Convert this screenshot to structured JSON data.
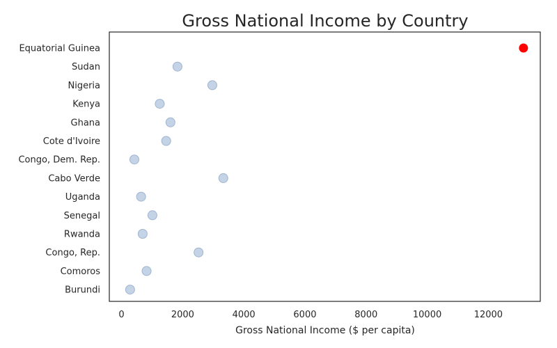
{
  "chart_data": {
    "type": "scatter",
    "title": "Gross National Income by Country",
    "xlabel": "Gross National Income ($ per capita)",
    "ylabel": "",
    "xlim": [
      -400,
      13700
    ],
    "x_ticks": [
      0,
      2000,
      4000,
      6000,
      8000,
      10000,
      12000
    ],
    "x_tick_labels": [
      "0",
      "2000",
      "4000",
      "6000",
      "8000",
      "10000",
      "12000"
    ],
    "grid": false,
    "colors": {
      "default_point": "#b0c4de",
      "default_point_edge": "#9fb4d0",
      "highlight_point": "#ff0000",
      "frame": "#262626"
    },
    "categories": [
      "Equatorial Guinea",
      "Sudan",
      "Nigeria",
      "Kenya",
      "Ghana",
      "Cote d'Ivoire",
      "Congo, Dem. Rep.",
      "Cabo Verde",
      "Uganda",
      "Senegal",
      "Rwanda",
      "Congo, Rep.",
      "Comoros",
      "Burundi"
    ],
    "values": [
      13150,
      1830,
      2970,
      1250,
      1600,
      1460,
      420,
      3330,
      640,
      1010,
      690,
      2520,
      820,
      280
    ],
    "highlight": "Equatorial Guinea"
  }
}
